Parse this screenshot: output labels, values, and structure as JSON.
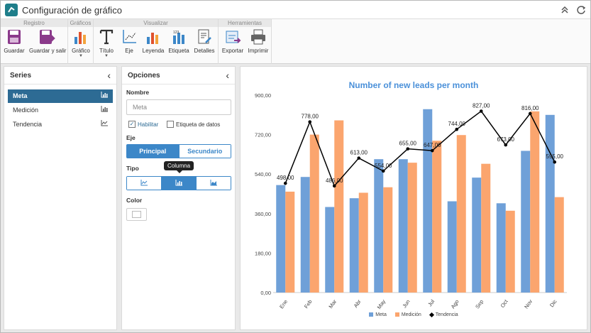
{
  "window": {
    "title": "Configuración de gráfico"
  },
  "ribbon": {
    "groups": [
      {
        "label": "Registro",
        "buttons": [
          {
            "label": "Guardar",
            "icon": "save-icon"
          },
          {
            "label": "Guardar y salir",
            "icon": "save-exit-icon"
          }
        ]
      },
      {
        "label": "Gráficos",
        "buttons": [
          {
            "label": "Gráfico",
            "icon": "chart-type-icon"
          }
        ]
      },
      {
        "label": "Visualizar",
        "buttons": [
          {
            "label": "Título",
            "icon": "title-icon"
          },
          {
            "label": "Eje",
            "icon": "axis-icon"
          },
          {
            "label": "Leyenda",
            "icon": "legend-icon"
          },
          {
            "label": "Etiqueta",
            "icon": "label-icon"
          },
          {
            "label": "Detalles",
            "icon": "details-icon"
          }
        ]
      },
      {
        "label": "Herramientas",
        "buttons": [
          {
            "label": "Exportar",
            "icon": "export-icon"
          },
          {
            "label": "Imprimir",
            "icon": "print-icon"
          }
        ]
      }
    ]
  },
  "series_panel": {
    "title": "Series",
    "items": [
      {
        "label": "Meta",
        "icon": "column-chart-icon",
        "active": true
      },
      {
        "label": "Medición",
        "icon": "column-chart-icon",
        "active": false
      },
      {
        "label": "Tendencia",
        "icon": "line-chart-icon",
        "active": false
      }
    ]
  },
  "options_panel": {
    "title": "Opciones",
    "name_label": "Nombre",
    "name_value": "Meta",
    "enable_label": "Habilitar",
    "enable_checked": true,
    "data_label_label": "Etiqueta de datos",
    "data_label_checked": false,
    "axis_label": "Eje",
    "axis_options": [
      "Principal",
      "Secundario"
    ],
    "axis_selected": "Principal",
    "type_label": "Tipo",
    "type_options": [
      "line-chart-icon",
      "column-chart-icon",
      "area-chart-icon"
    ],
    "type_selected": "column-chart-icon",
    "tooltip": "Columna",
    "color_label": "Color",
    "color_value": "#ffffff"
  },
  "chart_data": {
    "type": "bar",
    "title": "Number of new leads per month",
    "categories": [
      "Ene",
      "Feb",
      "Mar",
      "Abr",
      "May",
      "Jun",
      "Jul",
      "Ago",
      "Sep",
      "Oct",
      "Nov",
      "Dic"
    ],
    "series": [
      {
        "name": "Meta",
        "type": "bar",
        "color": "#6fa0d8",
        "values": [
          490,
          527,
          390,
          430,
          608,
          608,
          836,
          416,
          524,
          407,
          646,
          810
        ]
      },
      {
        "name": "Medición",
        "type": "bar",
        "color": "#fba56e",
        "values": [
          460,
          720,
          785,
          455,
          480,
          592,
          692,
          718,
          587,
          373,
          826,
          435
        ]
      },
      {
        "name": "Tendencia",
        "type": "line",
        "color": "#000000",
        "values": [
          498,
          778,
          486,
          613,
          554,
          655,
          647,
          744,
          827,
          673,
          816,
          595
        ],
        "labels": [
          "498,00",
          "778,00",
          "486,00",
          "613,00",
          "554,00",
          "655,00",
          "647,00",
          "744,00",
          "827,00",
          "673,00",
          "816,00",
          "595,00"
        ]
      }
    ],
    "y_ticks": [
      0,
      180,
      360,
      540,
      720,
      900
    ],
    "y_tick_labels": [
      "0,00",
      "180,00",
      "360,00",
      "540,00",
      "720,00",
      "900,00"
    ],
    "ylim": [
      0,
      900
    ],
    "grid": false,
    "legend_position": "bottom"
  }
}
